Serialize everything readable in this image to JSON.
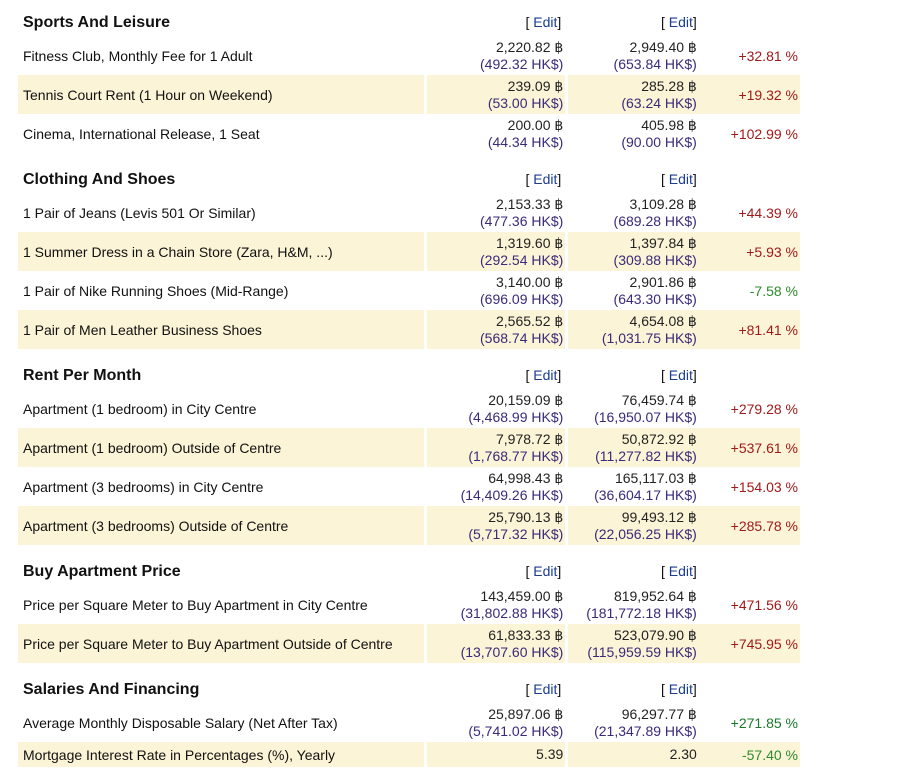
{
  "edit_label": "Edit",
  "sections": [
    {
      "title": "Sports And Leisure",
      "rows": [
        {
          "name": "Fitness Club, Monthly Fee for 1 Adult",
          "a": "2,220.82 ฿",
          "a_hk": "(492.32 HK$)",
          "b": "2,949.40 ฿",
          "b_hk": "(653.84 HK$)",
          "diff": "+32.81 %",
          "tone": "pos"
        },
        {
          "name": "Tennis Court Rent (1 Hour on Weekend)",
          "a": "239.09 ฿",
          "a_hk": "(53.00 HK$)",
          "b": "285.28 ฿",
          "b_hk": "(63.24 HK$)",
          "diff": "+19.32 %",
          "tone": "pos"
        },
        {
          "name": "Cinema, International Release, 1 Seat",
          "a": "200.00 ฿",
          "a_hk": "(44.34 HK$)",
          "b": "405.98 ฿",
          "b_hk": "(90.00 HK$)",
          "diff": "+102.99 %",
          "tone": "pos"
        }
      ]
    },
    {
      "title": "Clothing And Shoes",
      "rows": [
        {
          "name": "1 Pair of Jeans (Levis 501 Or Similar)",
          "a": "2,153.33 ฿",
          "a_hk": "(477.36 HK$)",
          "b": "3,109.28 ฿",
          "b_hk": "(689.28 HK$)",
          "diff": "+44.39 %",
          "tone": "pos"
        },
        {
          "name": "1 Summer Dress in a Chain Store (Zara, H&M, ...)",
          "a": "1,319.60 ฿",
          "a_hk": "(292.54 HK$)",
          "b": "1,397.84 ฿",
          "b_hk": "(309.88 HK$)",
          "diff": "+5.93 %",
          "tone": "pos"
        },
        {
          "name": "1 Pair of Nike Running Shoes (Mid-Range)",
          "a": "3,140.00 ฿",
          "a_hk": "(696.09 HK$)",
          "b": "2,901.86 ฿",
          "b_hk": "(643.30 HK$)",
          "diff": "-7.58 %",
          "tone": "neg"
        },
        {
          "name": "1 Pair of Men Leather Business Shoes",
          "a": "2,565.52 ฿",
          "a_hk": "(568.74 HK$)",
          "b": "4,654.08 ฿",
          "b_hk": "(1,031.75 HK$)",
          "diff": "+81.41 %",
          "tone": "pos"
        }
      ]
    },
    {
      "title": "Rent Per Month",
      "rows": [
        {
          "name": "Apartment (1 bedroom) in City Centre",
          "a": "20,159.09 ฿",
          "a_hk": "(4,468.99 HK$)",
          "b": "76,459.74 ฿",
          "b_hk": "(16,950.07 HK$)",
          "diff": "+279.28 %",
          "tone": "pos"
        },
        {
          "name": "Apartment (1 bedroom) Outside of Centre",
          "a": "7,978.72 ฿",
          "a_hk": "(1,768.77 HK$)",
          "b": "50,872.92 ฿",
          "b_hk": "(11,277.82 HK$)",
          "diff": "+537.61 %",
          "tone": "pos"
        },
        {
          "name": "Apartment (3 bedrooms) in City Centre",
          "a": "64,998.43 ฿",
          "a_hk": "(14,409.26 HK$)",
          "b": "165,117.03 ฿",
          "b_hk": "(36,604.17 HK$)",
          "diff": "+154.03 %",
          "tone": "pos"
        },
        {
          "name": "Apartment (3 bedrooms) Outside of Centre",
          "a": "25,790.13 ฿",
          "a_hk": "(5,717.32 HK$)",
          "b": "99,493.12 ฿",
          "b_hk": "(22,056.25 HK$)",
          "diff": "+285.78 %",
          "tone": "pos"
        }
      ]
    },
    {
      "title": "Buy Apartment Price",
      "rows": [
        {
          "name": "Price per Square Meter to Buy Apartment in City Centre",
          "a": "143,459.00 ฿",
          "a_hk": "(31,802.88 HK$)",
          "b": "819,952.64 ฿",
          "b_hk": "(181,772.18 HK$)",
          "diff": "+471.56 %",
          "tone": "pos"
        },
        {
          "name": "Price per Square Meter to Buy Apartment Outside of Centre",
          "a": "61,833.33 ฿",
          "a_hk": "(13,707.60 HK$)",
          "b": "523,079.90 ฿",
          "b_hk": "(115,959.59 HK$)",
          "diff": "+745.95 %",
          "tone": "pos"
        }
      ]
    },
    {
      "title": "Salaries And Financing",
      "rows": [
        {
          "name": "Average Monthly Disposable Salary (Net After Tax)",
          "a": "25,897.06 ฿",
          "a_hk": "(5,741.02 HK$)",
          "b": "96,297.77 ฿",
          "b_hk": "(21,347.89 HK$)",
          "diff": "+271.85 %",
          "tone": "pos-green"
        },
        {
          "name": "Mortgage Interest Rate in Percentages (%), Yearly",
          "a": "5.39",
          "a_hk": "",
          "b": "2.30",
          "b_hk": "",
          "diff": "-57.40 %",
          "tone": "neg"
        }
      ]
    }
  ]
}
